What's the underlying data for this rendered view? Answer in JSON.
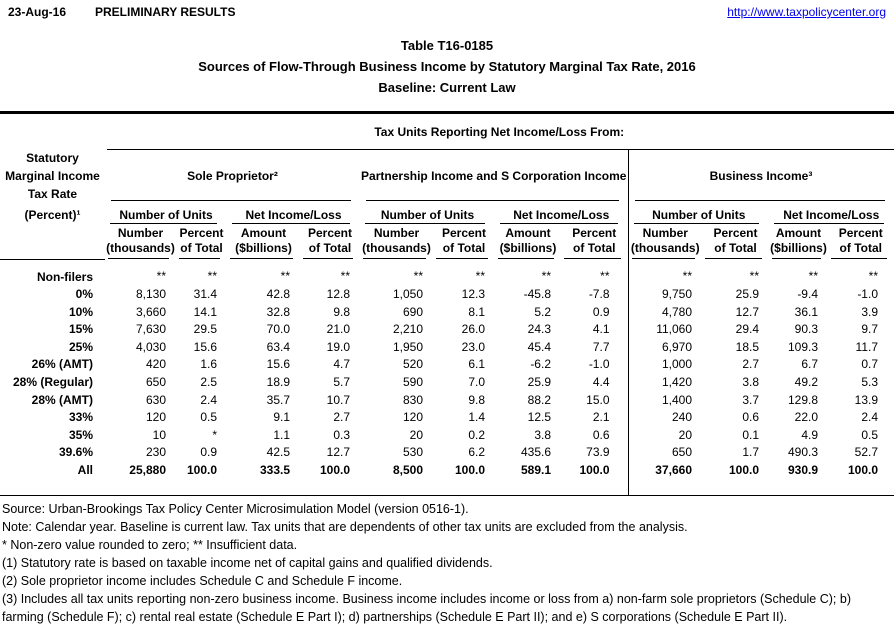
{
  "meta": {
    "date": "23-Aug-16",
    "status": "PRELIMINARY RESULTS",
    "url": "http://www.taxpolicycenter.org"
  },
  "title": {
    "table_number": "Table T16-0185",
    "main": "Sources of Flow-Through Business Income by Statutory Marginal Tax Rate, 2016",
    "baseline": "Baseline: Current Law"
  },
  "table": {
    "spanning_header": "Tax Units Reporting Net Income/Loss From:",
    "stub_header_lines": [
      "Statutory",
      "Marginal Income",
      "Tax Rate",
      "(Percent)¹"
    ],
    "groups": [
      {
        "label": "Sole Proprietor²"
      },
      {
        "label": "Partnership Income and S Corporation Income"
      },
      {
        "label": "Business Income³"
      }
    ],
    "subgroup_labels": [
      "Number of Units",
      "Net Income/Loss"
    ],
    "column_headers": [
      {
        "line1": "Number",
        "line2": "(thousands)"
      },
      {
        "line1": "Percent",
        "line2": "of Total"
      },
      {
        "line1": "Amount",
        "line2": "($billions)"
      },
      {
        "line1": "Percent",
        "line2": "of Total"
      }
    ],
    "rows": [
      {
        "label": "Non-filers",
        "bold": false,
        "values": [
          "**",
          "**",
          "**",
          "**",
          "**",
          "**",
          "**",
          "**",
          "**",
          "**",
          "**",
          "**"
        ]
      },
      {
        "label": "0%",
        "bold": false,
        "values": [
          "8,130",
          "31.4",
          "42.8",
          "12.8",
          "1,050",
          "12.3",
          "-45.8",
          "-7.8",
          "9,750",
          "25.9",
          "-9.4",
          "-1.0"
        ]
      },
      {
        "label": "10%",
        "bold": false,
        "values": [
          "3,660",
          "14.1",
          "32.8",
          "9.8",
          "690",
          "8.1",
          "5.2",
          "0.9",
          "4,780",
          "12.7",
          "36.1",
          "3.9"
        ]
      },
      {
        "label": "15%",
        "bold": false,
        "values": [
          "7,630",
          "29.5",
          "70.0",
          "21.0",
          "2,210",
          "26.0",
          "24.3",
          "4.1",
          "11,060",
          "29.4",
          "90.3",
          "9.7"
        ]
      },
      {
        "label": "25%",
        "bold": false,
        "values": [
          "4,030",
          "15.6",
          "63.4",
          "19.0",
          "1,950",
          "23.0",
          "45.4",
          "7.7",
          "6,970",
          "18.5",
          "109.3",
          "11.7"
        ]
      },
      {
        "label": "26% (AMT)",
        "bold": false,
        "values": [
          "420",
          "1.6",
          "15.6",
          "4.7",
          "520",
          "6.1",
          "-6.2",
          "-1.0",
          "1,000",
          "2.7",
          "6.7",
          "0.7"
        ]
      },
      {
        "label": "28% (Regular)",
        "bold": false,
        "values": [
          "650",
          "2.5",
          "18.9",
          "5.7",
          "590",
          "7.0",
          "25.9",
          "4.4",
          "1,420",
          "3.8",
          "49.2",
          "5.3"
        ]
      },
      {
        "label": "28% (AMT)",
        "bold": false,
        "values": [
          "630",
          "2.4",
          "35.7",
          "10.7",
          "830",
          "9.8",
          "88.2",
          "15.0",
          "1,400",
          "3.7",
          "129.8",
          "13.9"
        ]
      },
      {
        "label": "33%",
        "bold": false,
        "values": [
          "120",
          "0.5",
          "9.1",
          "2.7",
          "120",
          "1.4",
          "12.5",
          "2.1",
          "240",
          "0.6",
          "22.0",
          "2.4"
        ]
      },
      {
        "label": "35%",
        "bold": false,
        "values": [
          "10",
          "*",
          "1.1",
          "0.3",
          "20",
          "0.2",
          "3.8",
          "0.6",
          "20",
          "0.1",
          "4.9",
          "0.5"
        ]
      },
      {
        "label": "39.6%",
        "bold": false,
        "values": [
          "230",
          "0.9",
          "42.5",
          "12.7",
          "530",
          "6.2",
          "435.6",
          "73.9",
          "650",
          "1.7",
          "490.3",
          "52.7"
        ]
      },
      {
        "label": "All",
        "bold": true,
        "values": [
          "25,880",
          "100.0",
          "333.5",
          "100.0",
          "8,500",
          "100.0",
          "589.1",
          "100.0",
          "37,660",
          "100.0",
          "930.9",
          "100.0"
        ]
      }
    ]
  },
  "footnotes": [
    "Source: Urban-Brookings Tax Policy Center Microsimulation Model (version 0516-1).",
    "Note: Calendar year. Baseline is current law. Tax units that are dependents of other tax units are excluded from the analysis.",
    "* Non-zero value rounded to zero; ** Insufficient data.",
    "(1) Statutory rate is based on taxable income net of capital gains and qualified dividends.",
    "(2)  Sole proprietor income includes Schedule C and Schedule F income.",
    "(3) Includes all tax units reporting non-zero business income. Business income includes income or loss from a) non-farm sole proprietors (Schedule C); b) farming (Schedule F); c) rental real estate (Schedule E Part I); d) partnerships (Schedule E Part II); and e) S corporations (Schedule E Part II)."
  ],
  "colors": {
    "link": "#0000ee",
    "text": "#000000",
    "background": "#ffffff"
  }
}
